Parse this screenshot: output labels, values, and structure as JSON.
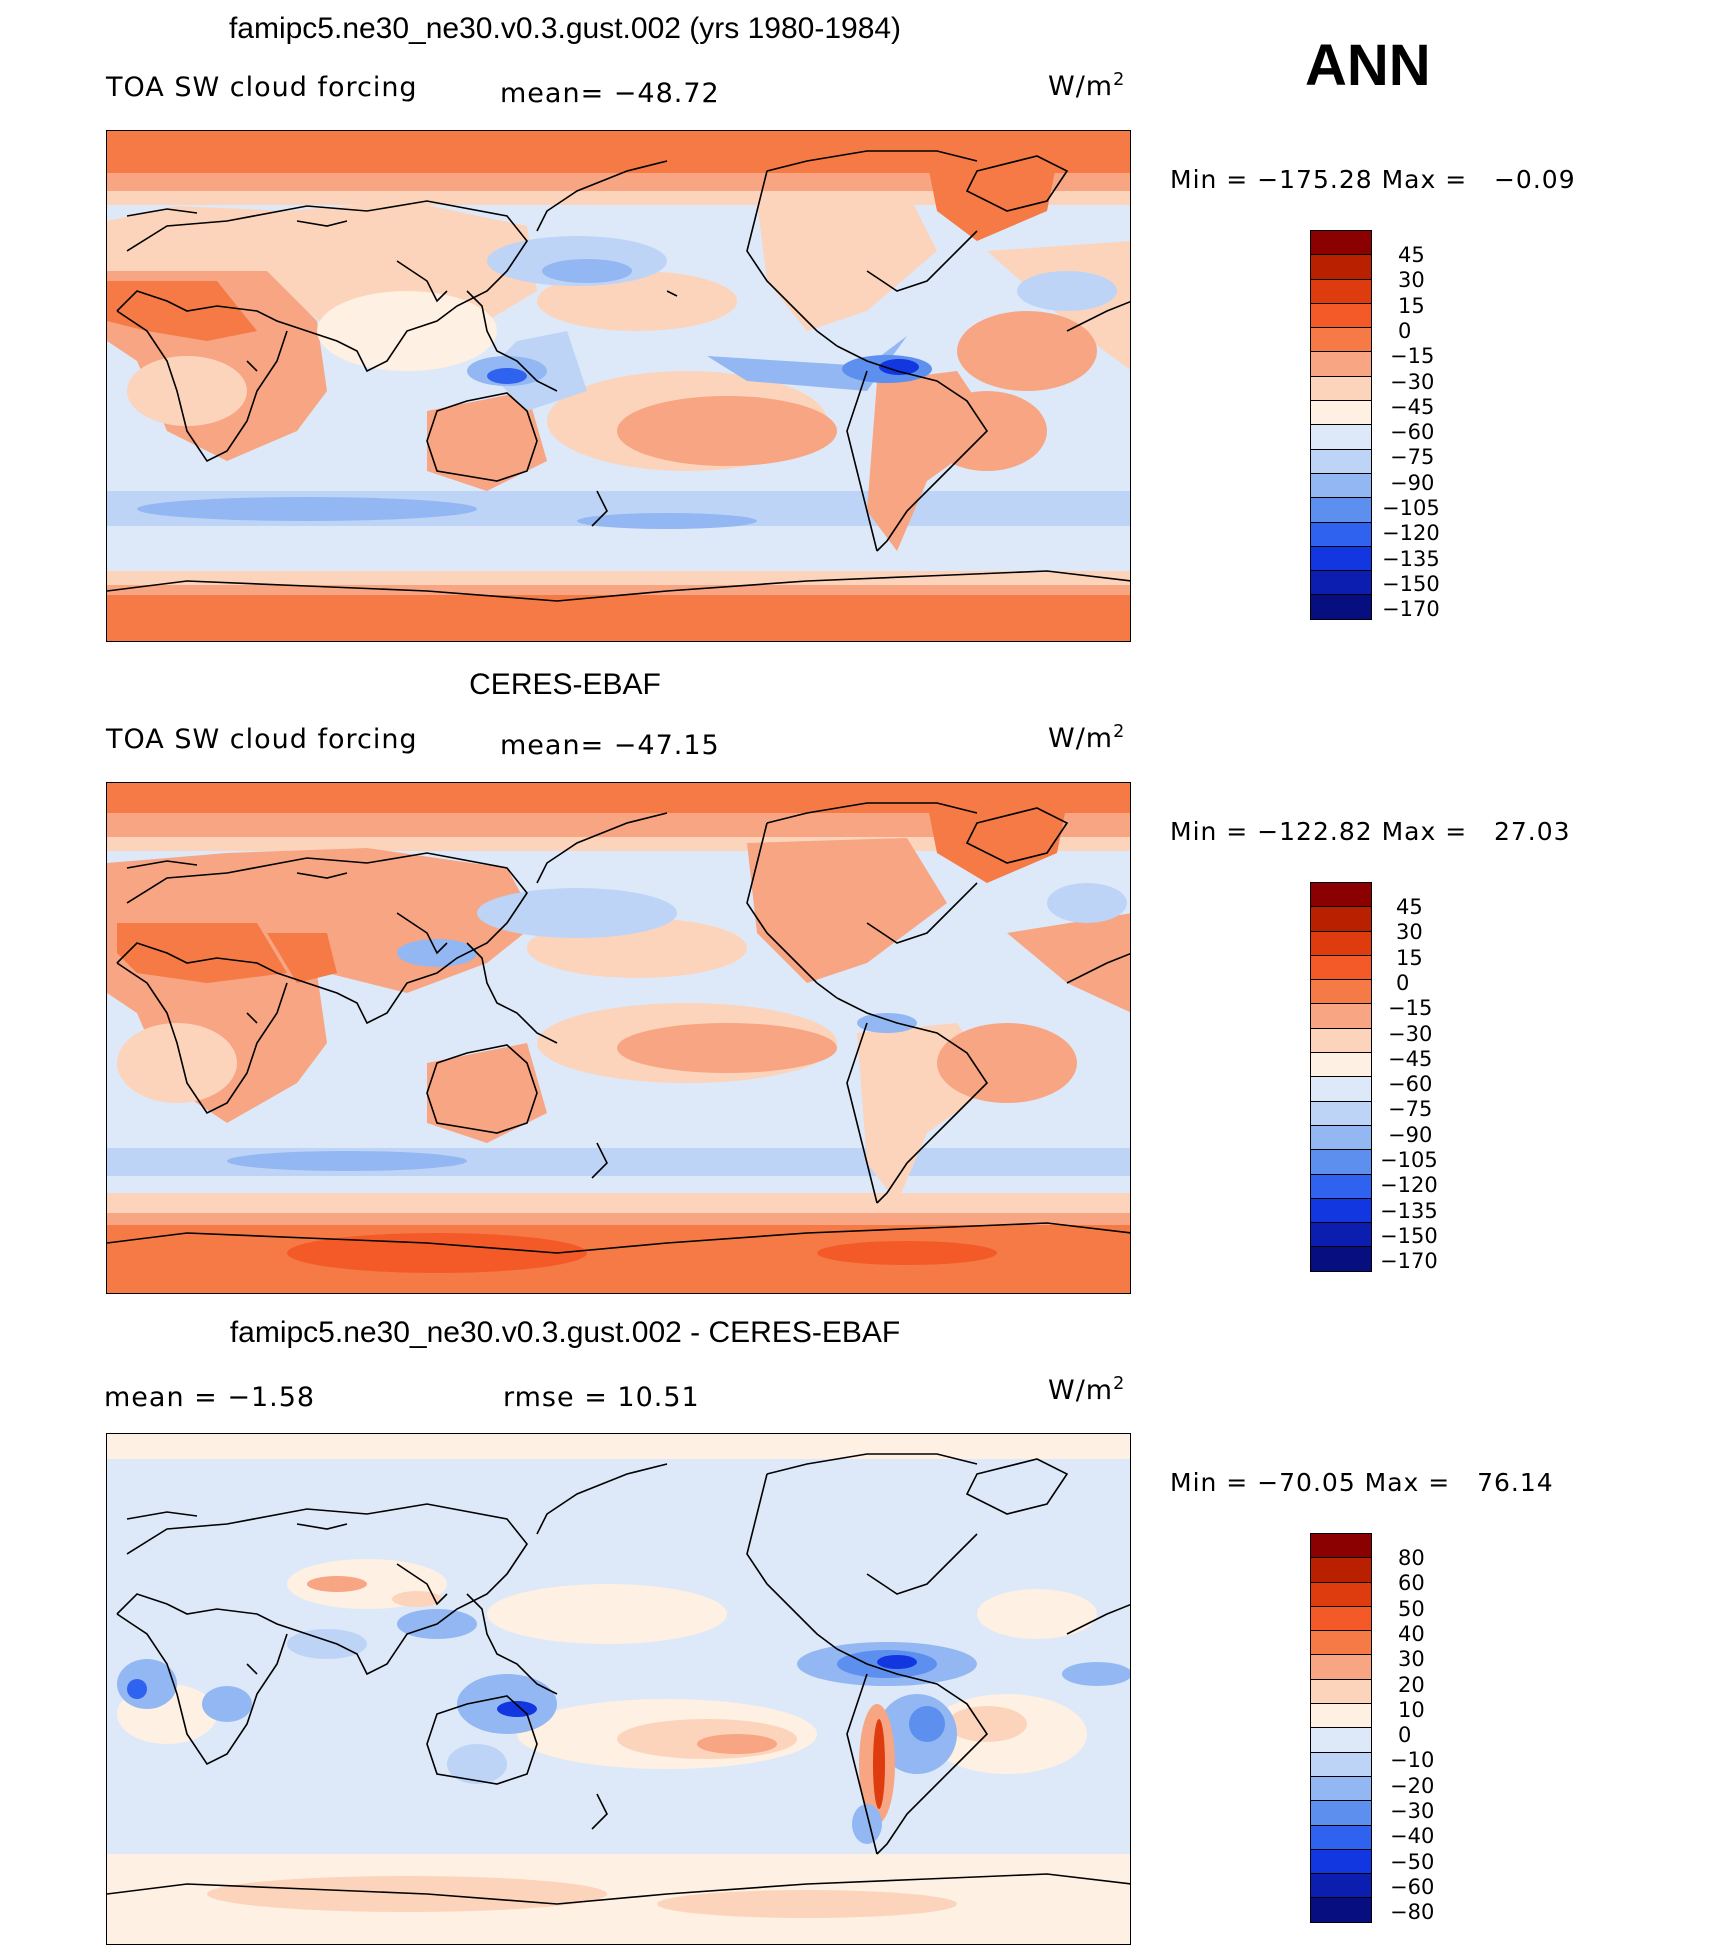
{
  "season": "ANN",
  "panels": [
    {
      "title": "famipc5.ne30_ne30.v0.3.gust.002 (yrs 1980-1984)",
      "left_label": "TOA SW cloud forcing",
      "mid_label": "mean= −48.72",
      "units": "W/m",
      "units_exp": "2",
      "minmax": "Min = −175.28 Max =   −0.09",
      "colorbar_labels": [
        "45",
        "30",
        "15",
        "0",
        "−15",
        "−30",
        "−45",
        "−60",
        "−75",
        "−90",
        "−105",
        "−120",
        "−135",
        "−150",
        "−170"
      ],
      "colorbar_colors": [
        "#8b0000",
        "#b82000",
        "#de3b0e",
        "#f35a28",
        "#f57a45",
        "#f7a583",
        "#fcd4bc",
        "#fef0e2",
        "#dde9f9",
        "#bed4f6",
        "#93b7f2",
        "#5d8fef",
        "#2f62ee",
        "#1236df",
        "#0c1eb0",
        "#070f80"
      ]
    },
    {
      "title": "CERES-EBAF",
      "left_label": "TOA SW cloud forcing",
      "mid_label": "mean= −47.15",
      "units": "W/m",
      "units_exp": "2",
      "minmax": "Min = −122.82 Max =   27.03",
      "colorbar_labels": [
        "45",
        "30",
        "15",
        "0",
        "−15",
        "−30",
        "−45",
        "−60",
        "−75",
        "−90",
        "−105",
        "−120",
        "−135",
        "−150",
        "−170"
      ],
      "colorbar_colors": [
        "#8b0000",
        "#b82000",
        "#de3b0e",
        "#f35a28",
        "#f57a45",
        "#f7a583",
        "#fcd4bc",
        "#fef0e2",
        "#dde9f9",
        "#bed4f6",
        "#93b7f2",
        "#5d8fef",
        "#2f62ee",
        "#1236df",
        "#0c1eb0",
        "#070f80"
      ]
    },
    {
      "title": "famipc5.ne30_ne30.v0.3.gust.002 - CERES-EBAF",
      "left_label": "mean =   −1.58",
      "mid_label": "rmse =   10.51",
      "units": "W/m",
      "units_exp": "2",
      "minmax": "Min = −70.05 Max =   76.14",
      "colorbar_labels": [
        "80",
        "60",
        "50",
        "40",
        "30",
        "20",
        "10",
        "0",
        "−10",
        "−20",
        "−30",
        "−40",
        "−50",
        "−60",
        "−80"
      ],
      "colorbar_colors": [
        "#8b0000",
        "#b82000",
        "#de3b0e",
        "#f35a28",
        "#f57a45",
        "#f7a583",
        "#fcd4bc",
        "#fef0e2",
        "#dde9f9",
        "#bed4f6",
        "#93b7f2",
        "#5d8fef",
        "#2f62ee",
        "#1236df",
        "#0c1eb0",
        "#070f80"
      ]
    }
  ],
  "map_colors": {
    "ocean_base": "#dde9f9",
    "warm_1": "#fef0e2",
    "warm_2": "#fcd4bc",
    "warm_3": "#f7a583",
    "warm_4": "#f57a45",
    "warm_5": "#f35a28",
    "cool_2": "#bed4f6",
    "cool_3": "#93b7f2",
    "cool_4": "#5d8fef",
    "cool_5": "#2f62ee",
    "cool_6": "#1236df"
  }
}
